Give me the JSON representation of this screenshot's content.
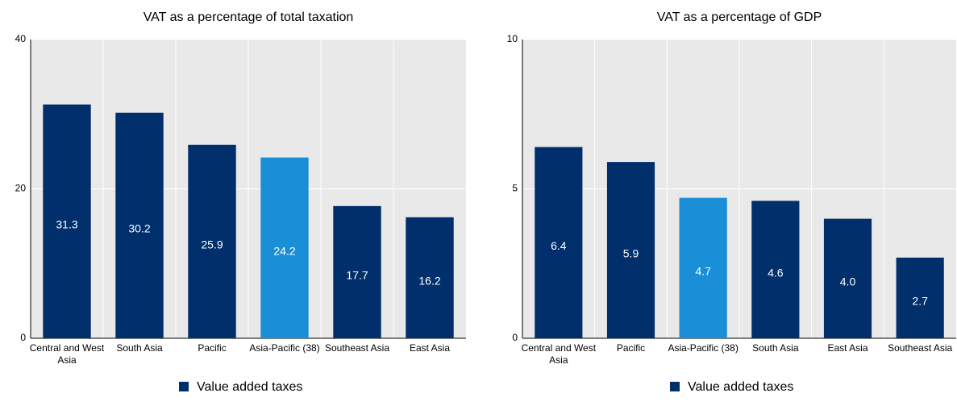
{
  "chart_data": [
    {
      "type": "bar",
      "title": "VAT as a percentage of total taxation",
      "categories": [
        "Central and West Asia",
        "South Asia",
        "Pacific",
        "Asia-Pacific (38)",
        "Southeast Asia",
        "East Asia"
      ],
      "series": [
        {
          "name": "Value added taxes",
          "color": "#002f6c",
          "values": [
            31.3,
            30.2,
            25.9,
            24.2,
            17.7,
            16.2
          ],
          "value_labels": [
            "31.3",
            "30.2",
            "25.9",
            "24.2",
            "17.7",
            "16.2"
          ]
        }
      ],
      "bar_colors": [
        "#002f6c",
        "#002f6c",
        "#002f6c",
        "#1a8fd8",
        "#002f6c",
        "#002f6c"
      ],
      "ylim": [
        0,
        40
      ],
      "yticks": [
        0,
        20,
        40
      ],
      "grid": true
    },
    {
      "type": "bar",
      "title": "VAT as a percentage of GDP",
      "categories": [
        "Central and West Asia",
        "Pacific",
        "Asia-Pacific (38)",
        "South Asia",
        "East Asia",
        "Southeast Asia"
      ],
      "series": [
        {
          "name": "Value added taxes",
          "color": "#002f6c",
          "values": [
            6.4,
            5.9,
            4.7,
            4.6,
            4.0,
            2.7
          ],
          "value_labels": [
            "6.4",
            "5.9",
            "4.7",
            "4.6",
            "4.0",
            "2.7"
          ]
        }
      ],
      "bar_colors": [
        "#002f6c",
        "#002f6c",
        "#1a8fd8",
        "#002f6c",
        "#002f6c",
        "#002f6c"
      ],
      "ylim": [
        0,
        10
      ],
      "yticks": [
        0,
        5,
        10
      ],
      "grid": true
    }
  ]
}
